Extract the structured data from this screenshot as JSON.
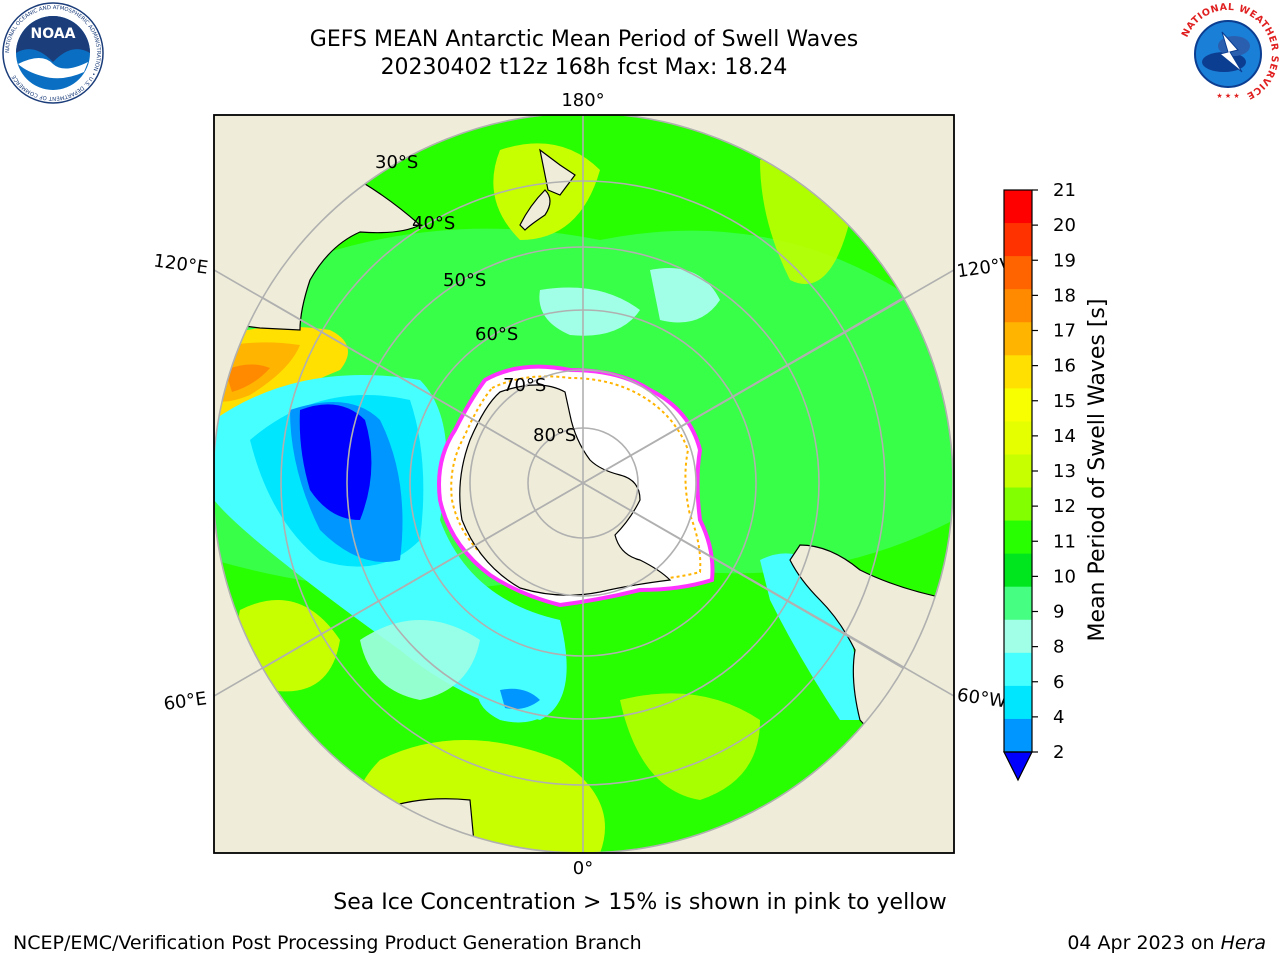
{
  "header": {
    "title_line1": "GEFS MEAN Antarctic Mean Period of Swell Waves",
    "title_line2": "20230402 t12z 168h fcst   Max: 18.24"
  },
  "logos": {
    "left": "NOAA",
    "left_ring_text": "NATIONAL OCEANIC AND ATMOSPHERIC ADMINISTRATION • U.S. DEPARTMENT OF COMMERCE",
    "right_ring_text": "NATIONAL WEATHER SERVICE"
  },
  "map": {
    "longitude_labels": {
      "top": "180°",
      "bottom": "0°",
      "upper_left": "120°E",
      "upper_right": "120°W",
      "lower_left": "60°E",
      "lower_right": "60°W"
    },
    "latitude_labels": [
      "30°S",
      "40°S",
      "50°S",
      "60°S",
      "70°S",
      "80°S"
    ],
    "colors": {
      "land": "#efedd9",
      "ice": "#ffffff",
      "sea_ice_edge": "#ff33ff",
      "grid": "#b0b0b0"
    }
  },
  "colorbar": {
    "label": "Mean Period of Swell Waves [s]",
    "ticks": [
      "21",
      "20",
      "19",
      "18",
      "17",
      "16",
      "15",
      "14",
      "13",
      "12",
      "11",
      "10",
      "9",
      "8",
      "6",
      "4",
      "2"
    ],
    "levels": [
      {
        "color": "#ff0000"
      },
      {
        "color": "#ff3200"
      },
      {
        "color": "#ff6400"
      },
      {
        "color": "#ff8a00"
      },
      {
        "color": "#ffb400"
      },
      {
        "color": "#ffe000"
      },
      {
        "color": "#f8ff00"
      },
      {
        "color": "#e6ff00"
      },
      {
        "color": "#c8ff00"
      },
      {
        "color": "#82ff00"
      },
      {
        "color": "#28ff00"
      },
      {
        "color": "#00e61e"
      },
      {
        "color": "#46ff82"
      },
      {
        "color": "#a0ffe6"
      },
      {
        "color": "#46ffff"
      },
      {
        "color": "#00e6ff"
      },
      {
        "color": "#0096ff"
      },
      {
        "color": "#0000ff"
      }
    ]
  },
  "footer": {
    "subtitle": "Sea Ice Concentration > 15% is shown in pink to yellow",
    "credit": "NCEP/EMC/Verification Post Processing Product Generation Branch",
    "date_prefix": "04 Apr 2023 on ",
    "date_machine": "Hera"
  }
}
